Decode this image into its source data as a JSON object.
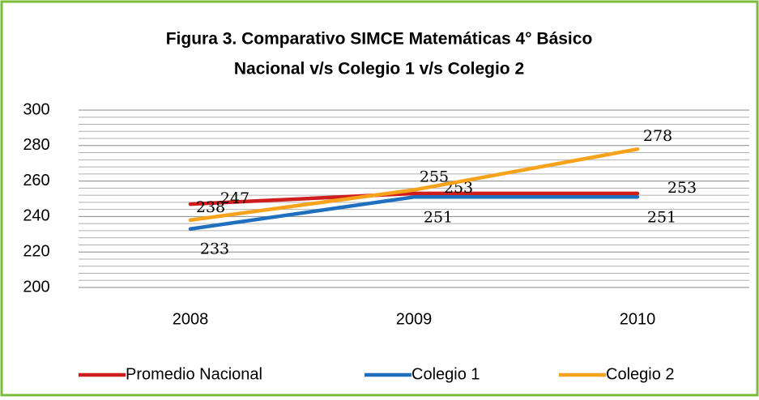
{
  "chart_data": {
    "type": "line",
    "title": [
      "Figura 3. Comparativo SIMCE Matemáticas  4° Básico",
      "Nacional v/s Colegio 1 v/s Colegio 2"
    ],
    "categories": [
      "2008",
      "2009",
      "2010"
    ],
    "series": [
      {
        "name": "Promedio Nacional",
        "color": "#d01c1c",
        "values": [
          247,
          253,
          253
        ]
      },
      {
        "name": "Colegio 1",
        "color": "#1f6fbf",
        "values": [
          233,
          251,
          251
        ]
      },
      {
        "name": "Colegio 2",
        "color": "#f7a21b",
        "values": [
          238,
          255,
          278
        ]
      }
    ],
    "ylim": [
      200,
      300
    ],
    "yticks": [
      200,
      220,
      240,
      260,
      280,
      300
    ],
    "grid": true,
    "minor_grid": true,
    "legend": "bottom",
    "data_labels": true
  }
}
